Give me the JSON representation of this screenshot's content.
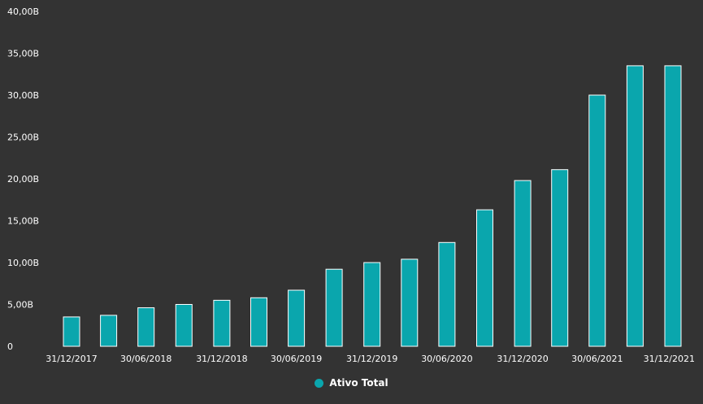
{
  "colors": {
    "background": "#333333",
    "bar_fill": "#0aa6ad",
    "bar_stroke": "#ffffff",
    "text": "#ffffff"
  },
  "chart_data": {
    "type": "bar",
    "title": "",
    "xlabel": "",
    "ylabel": "",
    "ylim": [
      0,
      40
    ],
    "y_ticks": [
      {
        "value": 0,
        "label": "0"
      },
      {
        "value": 5,
        "label": "5,00B"
      },
      {
        "value": 10,
        "label": "10,00B"
      },
      {
        "value": 15,
        "label": "15,00B"
      },
      {
        "value": 20,
        "label": "20,00B"
      },
      {
        "value": 25,
        "label": "25,00B"
      },
      {
        "value": 30,
        "label": "30,00B"
      },
      {
        "value": 35,
        "label": "35,00B"
      },
      {
        "value": 40,
        "label": "40,00B"
      }
    ],
    "x_ticks": [
      {
        "date": "2017-12-31",
        "label": "31/12/2017"
      },
      {
        "date": "2018-06-30",
        "label": "30/06/2018"
      },
      {
        "date": "2018-12-31",
        "label": "31/12/2018"
      },
      {
        "date": "2019-06-30",
        "label": "30/06/2019"
      },
      {
        "date": "2019-12-31",
        "label": "31/12/2019"
      },
      {
        "date": "2020-06-30",
        "label": "30/06/2020"
      },
      {
        "date": "2020-12-31",
        "label": "31/12/2020"
      },
      {
        "date": "2021-06-30",
        "label": "30/06/2021"
      },
      {
        "date": "2021-12-31",
        "label": "31/12/2021"
      }
    ],
    "series": [
      {
        "name": "Ativo Total",
        "color": "#0aa6ad",
        "points": [
          {
            "date": "2017-12-31",
            "value": 3.5
          },
          {
            "date": "2018-03-31",
            "value": 3.7
          },
          {
            "date": "2018-06-30",
            "value": 4.6
          },
          {
            "date": "2018-09-30",
            "value": 5.0
          },
          {
            "date": "2018-12-31",
            "value": 5.5
          },
          {
            "date": "2019-03-31",
            "value": 5.8
          },
          {
            "date": "2019-06-30",
            "value": 6.7
          },
          {
            "date": "2019-09-30",
            "value": 9.2
          },
          {
            "date": "2019-12-31",
            "value": 10.0
          },
          {
            "date": "2020-03-31",
            "value": 10.4
          },
          {
            "date": "2020-06-30",
            "value": 12.4
          },
          {
            "date": "2020-09-30",
            "value": 16.3
          },
          {
            "date": "2020-12-31",
            "value": 19.8
          },
          {
            "date": "2021-03-31",
            "value": 21.1
          },
          {
            "date": "2021-06-30",
            "value": 30.0
          },
          {
            "date": "2021-09-30",
            "value": 33.5
          },
          {
            "date": "2021-12-31",
            "value": 33.5
          }
        ]
      }
    ],
    "legend": {
      "position": "bottom-center"
    }
  }
}
